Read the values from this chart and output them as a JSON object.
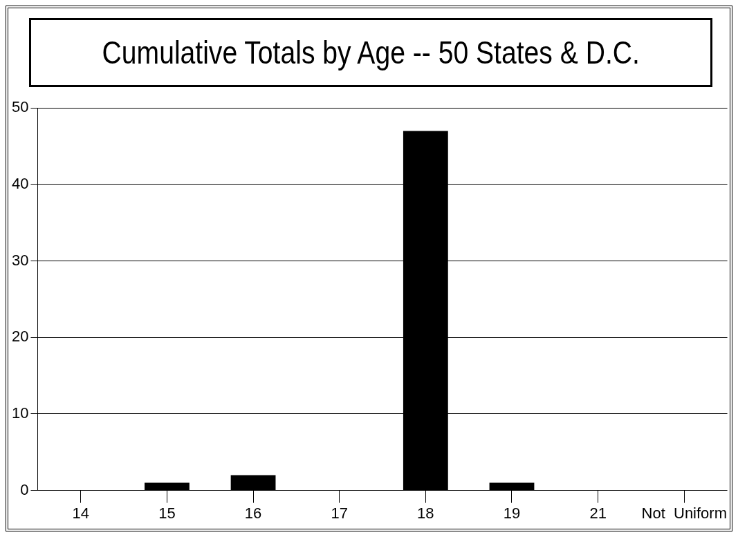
{
  "chart_data": {
    "type": "bar",
    "title": "Cumulative Totals by Age -- 50 States & D.C.",
    "categories": [
      "14",
      "15",
      "16",
      "17",
      "18",
      "19",
      "21",
      "Not  Uniform"
    ],
    "values": [
      0,
      1,
      2,
      0,
      47,
      1,
      0,
      0
    ],
    "color": "#000000",
    "ylim": [
      0,
      50
    ],
    "yticks": [
      0,
      10,
      20,
      30,
      40,
      50
    ],
    "grid": "y",
    "legend": false
  }
}
